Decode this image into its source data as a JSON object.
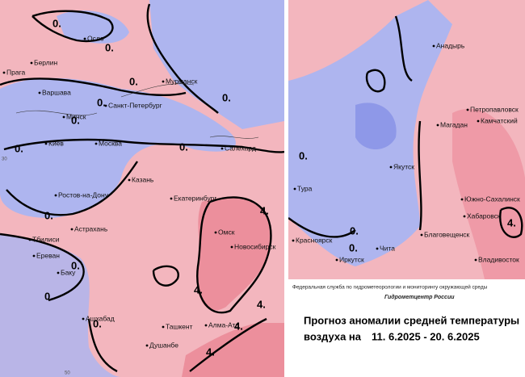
{
  "left_map": {
    "cities": [
      "Осло",
      "Берлин",
      "Прага",
      "Варшава",
      "Минск",
      "Киев",
      "Москва",
      "Мурманск",
      "Санкт-Петербург",
      "Салехард",
      "Казань",
      "Ростов-на-Дону",
      "Екатеринбург",
      "Астрахань",
      "Тбилиси",
      "Ереван",
      "Омск",
      "Новосибирск",
      "Баку",
      "Ашхабад",
      "Ташкент",
      "Алма-Ата",
      "Душанбе"
    ],
    "contour_labels": [
      "0.",
      "0.",
      "0.",
      "0.",
      "0.",
      "0.",
      "0.",
      "0.",
      "0.",
      "0.",
      "0.",
      "0.",
      "4.",
      "4.",
      "4.",
      "4.",
      "4."
    ],
    "grid_labels": [
      "30",
      "50"
    ]
  },
  "right_map": {
    "cities": [
      "Анадырь",
      "Петропавловск",
      "Камчатский",
      "Магадан",
      "Якутск",
      "Тура",
      "Южно-Сахалинск",
      "Хабаровск",
      "Красноярск",
      "Благовещенск",
      "Чита",
      "Иркутск",
      "Владивосток"
    ],
    "contour_labels": [
      "0.",
      "0.",
      "0.",
      "4."
    ]
  },
  "footer": {
    "agency": "Федеральная служба по гидрометеорологии и мониторингу окружающей среды",
    "center": "Гидрометцентр России",
    "title_line1": "Прогноз аномалии средней температуры",
    "title_line2_prefix": "воздуха на",
    "title_dates": "11. 6.2025 - 20. 6.2025"
  }
}
